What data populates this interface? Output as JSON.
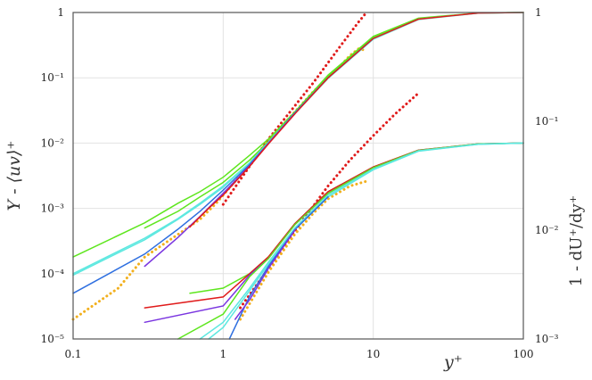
{
  "chart_data": {
    "type": "line",
    "x_scale": "log",
    "y_scale": "log",
    "xlim": [
      0.1,
      100
    ],
    "ylim_left": [
      1e-05,
      1
    ],
    "ylim_right": [
      0.001,
      1
    ],
    "grid": true,
    "xlabel": "y⁺",
    "ylabel_left": "Y - ⟨uv⟩⁺",
    "ylabel_right": "1 - dU⁺/dy⁺",
    "x_ticks": [
      {
        "value": 0.1,
        "label": "0.1"
      },
      {
        "value": 1,
        "label": "1"
      },
      {
        "value": 10,
        "label": "10"
      },
      {
        "value": 100,
        "label": "100"
      }
    ],
    "y_ticks_left": [
      {
        "value": 1,
        "label": "1"
      },
      {
        "value": 0.1,
        "label": "10⁻¹"
      },
      {
        "value": 0.01,
        "label": "10⁻²"
      },
      {
        "value": 0.001,
        "label": "10⁻³"
      },
      {
        "value": 0.0001,
        "label": "10⁻⁴"
      },
      {
        "value": 1e-05,
        "label": "10⁻⁵"
      }
    ],
    "y_ticks_right": [
      {
        "value": 1,
        "label": "1"
      },
      {
        "value": 0.1,
        "label": "10⁻¹"
      },
      {
        "value": 0.01,
        "label": "10⁻²"
      },
      {
        "value": 0.001,
        "label": "10⁻³"
      }
    ],
    "series": [
      {
        "group": "upper",
        "style": "dotted",
        "color": "#e01b1b",
        "points": [
          [
            1,
            0.00115
          ],
          [
            2,
            0.0115
          ],
          [
            3,
            0.037
          ],
          [
            4,
            0.085
          ],
          [
            5,
            0.17
          ],
          [
            6,
            0.3
          ],
          [
            7,
            0.48
          ],
          [
            8,
            0.72
          ],
          [
            9,
            1.0
          ]
        ]
      },
      {
        "group": "upper",
        "style": "dotted",
        "color": "#f2b01e",
        "points": [
          [
            0.1,
            2e-05
          ],
          [
            0.2,
            6e-05
          ],
          [
            0.3,
            0.00018
          ],
          [
            0.5,
            0.0004
          ],
          [
            0.7,
            0.00068
          ],
          [
            0.9,
            0.0012
          ],
          [
            1.2,
            0.0026
          ],
          [
            1.6,
            0.0058
          ],
          [
            2,
            0.0108
          ],
          [
            3,
            0.03
          ],
          [
            4,
            0.062
          ],
          [
            5,
            0.1
          ],
          [
            6,
            0.15
          ],
          [
            7,
            0.22
          ],
          [
            8,
            0.28
          ],
          [
            9,
            0.26
          ]
        ]
      },
      {
        "group": "upper",
        "style": "solid",
        "color": "#5ee61e",
        "points": [
          [
            0.1,
            0.00018
          ],
          [
            0.3,
            0.0006
          ],
          [
            0.5,
            0.0012
          ],
          [
            0.7,
            0.0018
          ],
          [
            1,
            0.003
          ],
          [
            1.5,
            0.0065
          ],
          [
            2,
            0.0115
          ],
          [
            3,
            0.03
          ],
          [
            5,
            0.11
          ],
          [
            10,
            0.43
          ],
          [
            20,
            0.82
          ],
          [
            50,
            0.985
          ],
          [
            100,
            1.0
          ]
        ]
      },
      {
        "group": "upper",
        "style": "solid",
        "color": "#5ee61e",
        "points": [
          [
            0.3,
            0.0005
          ],
          [
            0.5,
            0.0009
          ],
          [
            0.7,
            0.0015
          ],
          [
            1,
            0.0025
          ],
          [
            1.5,
            0.0055
          ],
          [
            2,
            0.0105
          ],
          [
            3,
            0.029
          ],
          [
            5,
            0.105
          ],
          [
            10,
            0.41
          ],
          [
            20,
            0.8
          ],
          [
            50,
            0.98
          ],
          [
            100,
            1.0
          ]
        ]
      },
      {
        "group": "upper",
        "style": "solid",
        "color": "#5de8e0",
        "points": [
          [
            0.1,
            0.0001
          ],
          [
            0.3,
            0.00035
          ],
          [
            0.5,
            0.0007
          ],
          [
            0.7,
            0.0012
          ],
          [
            1,
            0.0022
          ],
          [
            1.5,
            0.005
          ],
          [
            2,
            0.0103
          ],
          [
            3,
            0.029
          ],
          [
            5,
            0.1
          ],
          [
            10,
            0.4
          ],
          [
            20,
            0.79
          ],
          [
            50,
            0.98
          ],
          [
            100,
            1.0
          ]
        ]
      },
      {
        "group": "upper",
        "style": "solid",
        "color": "#5de8e0",
        "points": [
          [
            0.1,
            9.5e-05
          ],
          [
            0.3,
            0.00033
          ],
          [
            0.5,
            0.00068
          ],
          [
            0.7,
            0.00115
          ],
          [
            1,
            0.0021
          ],
          [
            1.5,
            0.0049
          ],
          [
            2,
            0.01
          ],
          [
            3,
            0.028
          ],
          [
            5,
            0.098
          ],
          [
            10,
            0.39
          ],
          [
            20,
            0.78
          ],
          [
            50,
            0.978
          ],
          [
            100,
            1.0
          ]
        ]
      },
      {
        "group": "upper",
        "style": "solid",
        "color": "#2e6fe0",
        "points": [
          [
            0.1,
            5e-05
          ],
          [
            0.3,
            0.0002
          ],
          [
            0.5,
            0.00048
          ],
          [
            0.7,
            0.0009
          ],
          [
            1,
            0.0019
          ],
          [
            1.5,
            0.0047
          ],
          [
            2,
            0.01
          ],
          [
            3,
            0.029
          ],
          [
            5,
            0.1
          ],
          [
            10,
            0.4
          ]
        ]
      },
      {
        "group": "upper",
        "style": "solid",
        "color": "#7a35e0",
        "points": [
          [
            0.3,
            0.00013
          ],
          [
            0.5,
            0.00036
          ],
          [
            0.7,
            0.00075
          ],
          [
            1,
            0.0017
          ],
          [
            1.5,
            0.0045
          ],
          [
            2,
            0.0098
          ],
          [
            3,
            0.028
          ]
        ]
      },
      {
        "group": "upper",
        "style": "solid",
        "color": "#e01b1b",
        "points": [
          [
            0.6,
            0.00052
          ],
          [
            0.8,
            0.001
          ],
          [
            1,
            0.0016
          ],
          [
            1.5,
            0.0044
          ],
          [
            2,
            0.0097
          ],
          [
            3,
            0.028
          ],
          [
            5,
            0.1
          ],
          [
            10,
            0.4
          ],
          [
            20,
            0.79
          ],
          [
            50,
            0.98
          ],
          [
            100,
            1.0
          ]
        ]
      },
      {
        "group": "lower",
        "style": "dotted",
        "color": "#e01b1b",
        "points": [
          [
            1.3,
            3e-05
          ],
          [
            2,
            0.00012
          ],
          [
            3,
            0.00045
          ],
          [
            4,
            0.0011
          ],
          [
            5,
            0.0022
          ],
          [
            7,
            0.0055
          ],
          [
            10,
            0.013
          ],
          [
            14,
            0.028
          ],
          [
            20,
            0.058
          ]
        ]
      },
      {
        "group": "lower",
        "style": "dotted",
        "color": "#f2b01e",
        "points": [
          [
            1.3,
            2e-05
          ],
          [
            2,
            0.000105
          ],
          [
            3,
            0.0004
          ],
          [
            4,
            0.00085
          ],
          [
            5,
            0.0014
          ],
          [
            7,
            0.0022
          ],
          [
            9,
            0.0026
          ]
        ]
      },
      {
        "group": "lower",
        "style": "solid",
        "color": "#5ee61e",
        "points": [
          [
            0.6,
            5e-05
          ],
          [
            1,
            6e-05
          ],
          [
            1.5,
            0.0001
          ],
          [
            2,
            0.00018
          ],
          [
            3,
            0.00058
          ],
          [
            5,
            0.0018
          ],
          [
            10,
            0.0043
          ],
          [
            20,
            0.0078
          ],
          [
            50,
            0.0097
          ],
          [
            100,
            0.01
          ]
        ]
      },
      {
        "group": "lower",
        "style": "solid",
        "color": "#e01b1b",
        "points": [
          [
            0.3,
            3e-05
          ],
          [
            1,
            4.4e-05
          ],
          [
            1.5,
            0.0001
          ],
          [
            2,
            0.00018
          ],
          [
            3,
            0.00058
          ],
          [
            5,
            0.0018
          ],
          [
            10,
            0.0043
          ],
          [
            20,
            0.0078
          ],
          [
            50,
            0.0097
          ],
          [
            100,
            0.01
          ]
        ]
      },
      {
        "group": "lower",
        "style": "solid",
        "color": "#7a35e0",
        "points": [
          [
            0.3,
            1.8e-05
          ],
          [
            1,
            3.2e-05
          ],
          [
            1.5,
            9.5e-05
          ],
          [
            2,
            0.00017
          ],
          [
            3,
            0.00056
          ],
          [
            5,
            0.0017
          ],
          [
            10,
            0.0042
          ],
          [
            20,
            0.0077
          ],
          [
            50,
            0.0097
          ],
          [
            100,
            0.01
          ]
        ]
      },
      {
        "group": "lower",
        "style": "solid",
        "color": "#5ee61e",
        "points": [
          [
            0.5,
            1e-05
          ],
          [
            1,
            2.4e-05
          ],
          [
            1.5,
            9e-05
          ],
          [
            2,
            0.00017
          ],
          [
            3,
            0.00056
          ],
          [
            5,
            0.0017
          ],
          [
            10,
            0.0042
          ],
          [
            20,
            0.0077
          ],
          [
            50,
            0.0097
          ],
          [
            100,
            0.01
          ]
        ]
      },
      {
        "group": "lower",
        "style": "solid",
        "color": "#5de8e0",
        "points": [
          [
            0.7,
            1e-05
          ],
          [
            1,
            1.8e-05
          ],
          [
            1.5,
            6e-05
          ],
          [
            2,
            0.00015
          ],
          [
            3,
            0.0005
          ],
          [
            5,
            0.0016
          ],
          [
            10,
            0.004
          ],
          [
            20,
            0.0076
          ],
          [
            50,
            0.0096
          ],
          [
            100,
            0.01
          ]
        ]
      },
      {
        "group": "lower",
        "style": "solid",
        "color": "#5de8e0",
        "points": [
          [
            0.8,
            1e-05
          ],
          [
            1,
            1.5e-05
          ],
          [
            1.5,
            5.5e-05
          ],
          [
            2,
            0.00014
          ],
          [
            3,
            0.00048
          ],
          [
            5,
            0.0015
          ],
          [
            10,
            0.0039
          ],
          [
            20,
            0.0075
          ],
          [
            50,
            0.0096
          ],
          [
            100,
            0.01
          ]
        ]
      },
      {
        "group": "lower",
        "style": "solid",
        "color": "#2e6fe0",
        "points": [
          [
            1.1,
            1e-05
          ],
          [
            1.5,
            4.5e-05
          ],
          [
            2,
            0.00013
          ],
          [
            3,
            0.00047
          ],
          [
            5,
            0.0015
          ]
        ]
      },
      {
        "group": "lower",
        "style": "solid",
        "color": "#7a35e0",
        "points": [
          [
            1.2,
            2e-05
          ],
          [
            1.5,
            4e-05
          ],
          [
            2,
            0.00012
          ],
          [
            3,
            0.00046
          ]
        ]
      }
    ]
  }
}
